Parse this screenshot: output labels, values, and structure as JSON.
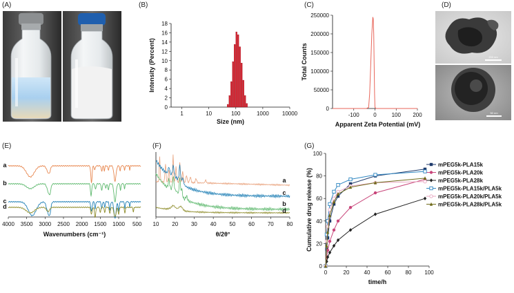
{
  "panels": {
    "A": {
      "label": "(A)"
    },
    "B": {
      "label": "(B)"
    },
    "C": {
      "label": "(C)"
    },
    "D": {
      "label": "(D)",
      "scale_bar_top": "200 nm",
      "scale_bar_bottom": "50 nm"
    },
    "E": {
      "label": "(E)"
    },
    "F": {
      "label": "(F)"
    },
    "G": {
      "label": "(G)"
    }
  },
  "chart_data": [
    {
      "id": "B",
      "type": "bar",
      "title": "",
      "xlabel": "Size (nm)",
      "ylabel": "Intensity (Percent)",
      "xscale": "log",
      "xlim": [
        0.4,
        10000
      ],
      "ylim": [
        0,
        18
      ],
      "xticks": [
        1,
        10,
        100,
        1000,
        10000
      ],
      "xtick_labels": [
        "1",
        "10",
        "100",
        "1000",
        "10000"
      ],
      "yticks": [
        0,
        2,
        4,
        6,
        8,
        10,
        12,
        14,
        16,
        18
      ],
      "ytick_labels": [
        "0",
        "2",
        "4",
        "6",
        "8",
        "10",
        "12",
        "14",
        "16",
        "18"
      ],
      "color": "#d81e2c",
      "categories": [
        50.7,
        58.8,
        68.1,
        78.8,
        91.3,
        105.7,
        122.4,
        141.8,
        164.2,
        190.1,
        220.2,
        255.0
      ],
      "values": [
        0.6,
        2.5,
        5.5,
        9.8,
        13.5,
        16.2,
        15.6,
        13.0,
        9.5,
        5.8,
        2.5,
        0.8
      ]
    },
    {
      "id": "C",
      "type": "line",
      "title": "",
      "xlabel": "Apparent Zeta Potential (mV)",
      "ylabel": "Total Counts",
      "xlim": [
        -200,
        200
      ],
      "ylim": [
        0,
        250000
      ],
      "xticks": [
        -100,
        0,
        100,
        200
      ],
      "xtick_labels": [
        "-100",
        "0",
        "100",
        "200"
      ],
      "yticks": [
        0,
        50000,
        100000,
        150000,
        200000,
        250000
      ],
      "ytick_labels": [
        "0",
        "50000",
        "100000",
        "150000",
        "200000",
        "250000"
      ],
      "color": "#e8665a",
      "series": [
        {
          "name": "zeta",
          "x": [
            -200,
            -40,
            -30,
            -25,
            -20,
            -15,
            -10,
            -8,
            -6,
            -4,
            -2,
            0,
            5,
            10,
            200
          ],
          "y": [
            0,
            0,
            3000,
            40000,
            120000,
            200000,
            245000,
            240000,
            200000,
            120000,
            40000,
            3000,
            0,
            0,
            0
          ]
        }
      ]
    },
    {
      "id": "E",
      "type": "line",
      "title": "",
      "xlabel": "Wavenumbers (cm⁻¹)",
      "ylabel": "",
      "xlim": [
        4000,
        400
      ],
      "xticks": [
        4000,
        3500,
        3000,
        2500,
        2000,
        1500,
        1000,
        500
      ],
      "xtick_labels": [
        "4000",
        "3500",
        "3000",
        "2500",
        "2000",
        "1500",
        "1000",
        "500"
      ],
      "trace_labels": [
        "a",
        "b",
        "c",
        "d"
      ],
      "colors": [
        "#e8874f",
        "#5fb96f",
        "#1f7fb5",
        "#8e8c2a"
      ]
    },
    {
      "id": "F",
      "type": "line",
      "title": "",
      "xlabel": "θ/2θ°",
      "ylabel": "",
      "xlim": [
        10,
        80
      ],
      "xticks": [
        10,
        20,
        30,
        40,
        50,
        60,
        70,
        80
      ],
      "xtick_labels": [
        "10",
        "20",
        "30",
        "40",
        "50",
        "60",
        "70",
        "80"
      ],
      "trace_labels": [
        "a",
        "b",
        "c",
        "d"
      ],
      "colors": [
        "#e8a07a",
        "#5fb96f",
        "#1f7fb5",
        "#8e8c2a"
      ]
    },
    {
      "id": "G",
      "type": "line",
      "title": "",
      "xlabel": "time/h",
      "ylabel": "Cumulative drug release (%)",
      "xlim": [
        0,
        100
      ],
      "ylim": [
        0,
        100
      ],
      "xticks": [
        0,
        20,
        40,
        60,
        80,
        100
      ],
      "xtick_labels": [
        "0",
        "20",
        "40",
        "60",
        "80",
        "100"
      ],
      "yticks": [
        0,
        20,
        40,
        60,
        80,
        100
      ],
      "ytick_labels": [
        "0",
        "20",
        "40",
        "60",
        "80",
        "100"
      ],
      "legend_position": "right",
      "x": [
        0,
        1,
        2,
        4,
        8,
        12,
        24,
        48,
        96
      ],
      "series": [
        {
          "name": "mPEG5k-PLA15k",
          "color": "#1f3a6b",
          "marker": "square",
          "values": [
            0,
            15,
            25,
            40,
            55,
            62,
            73,
            80,
            86
          ]
        },
        {
          "name": "mPEG5k-PLA20k",
          "color": "#c8457a",
          "marker": "circle",
          "values": [
            0,
            8,
            14,
            22,
            32,
            40,
            52,
            65,
            77
          ]
        },
        {
          "name": "mPEG5k-PLA28k",
          "color": "#222222",
          "marker": "diamond",
          "values": [
            0,
            4,
            8,
            12,
            18,
            23,
            32,
            46,
            60
          ]
        },
        {
          "name": "mPEG5k-PLA15k/PLA5k",
          "color": "#2e86c1",
          "marker": "opensquare",
          "values": [
            0,
            28,
            40,
            55,
            66,
            72,
            77,
            81,
            84
          ]
        },
        {
          "name": "mPEG5k-PLA20k/PLA5k",
          "color": "#e8a6c0",
          "marker": "opencircle",
          "values": [
            0,
            22,
            35,
            50,
            60,
            66,
            71,
            74,
            75
          ]
        },
        {
          "name": "mPEG5k-PLA28k/PLA5k",
          "color": "#6f6a1a",
          "marker": "triangle",
          "values": [
            0,
            18,
            30,
            45,
            57,
            64,
            70,
            74,
            78
          ]
        }
      ]
    }
  ]
}
